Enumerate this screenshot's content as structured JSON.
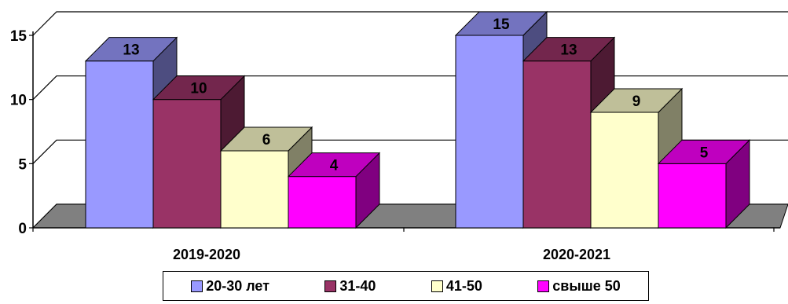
{
  "chart_data": {
    "type": "bar",
    "style": "3d-clustered-column",
    "categories": [
      "2019-2020",
      "2020-2021"
    ],
    "series": [
      {
        "name": "20-30 лет",
        "values": [
          13,
          15
        ],
        "color": "#9999ff"
      },
      {
        "name": "31-40",
        "values": [
          10,
          13
        ],
        "color": "#993366"
      },
      {
        "name": "41-50",
        "values": [
          6,
          9
        ],
        "color": "#ffffcc"
      },
      {
        "name": "свыше 50",
        "values": [
          4,
          5
        ],
        "color": "#ff00ff"
      }
    ],
    "y_ticks": [
      "0",
      "5",
      "10",
      "15"
    ],
    "ylim": [
      0,
      15
    ],
    "title": "",
    "xlabel": "",
    "ylabel": "",
    "grid": true,
    "legend_position": "bottom",
    "floor_color": "#808080"
  }
}
